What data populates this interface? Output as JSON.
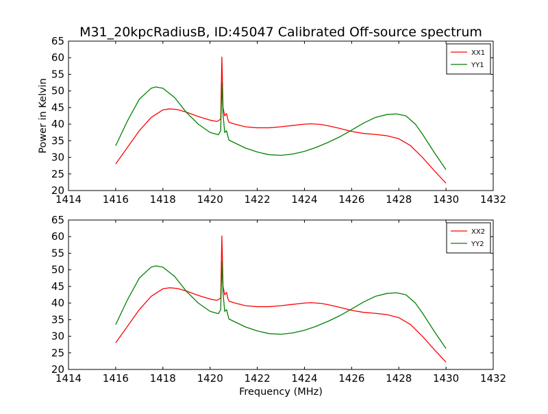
{
  "title": "M31_20kpcRadiusB, ID:45047 Calibrated Off-source spectrum",
  "colors": {
    "XX": "#ff0000",
    "YY": "#008000"
  },
  "chart_data": [
    {
      "type": "line",
      "ylabel": "Power in Kelvin",
      "xlabel": "",
      "xlim": [
        1414,
        1432
      ],
      "ylim": [
        20,
        65
      ],
      "xticks": [
        "1414",
        "1416",
        "1418",
        "1420",
        "1422",
        "1424",
        "1426",
        "1428",
        "1430",
        "1432"
      ],
      "yticks": [
        "20",
        "25",
        "30",
        "35",
        "40",
        "45",
        "50",
        "55",
        "60",
        "65"
      ],
      "legend_position": "top-right",
      "series": [
        {
          "name": "XX1",
          "color": "#ff0000",
          "x": [
            1416.0,
            1416.5,
            1417.0,
            1417.5,
            1418.0,
            1418.3,
            1418.6,
            1419.0,
            1419.5,
            1420.0,
            1420.3,
            1420.45,
            1420.5,
            1420.55,
            1420.62,
            1420.7,
            1420.75,
            1420.8,
            1421.0,
            1421.5,
            1422.0,
            1422.5,
            1423.0,
            1423.5,
            1424.0,
            1424.3,
            1424.7,
            1425.0,
            1425.5,
            1426.0,
            1426.5,
            1427.0,
            1427.5,
            1428.0,
            1428.5,
            1429.0,
            1429.5,
            1430.0
          ],
          "y": [
            28.0,
            33.0,
            38.0,
            42.0,
            44.3,
            44.6,
            44.4,
            43.6,
            42.3,
            41.2,
            40.8,
            41.5,
            60.2,
            45.0,
            42.5,
            43.2,
            41.5,
            40.6,
            40.1,
            39.2,
            38.9,
            38.9,
            39.2,
            39.6,
            40.0,
            40.1,
            39.9,
            39.5,
            38.7,
            37.8,
            37.2,
            36.9,
            36.5,
            35.6,
            33.5,
            30.0,
            26.0,
            22.2
          ]
        },
        {
          "name": "YY1",
          "color": "#008000",
          "x": [
            1416.0,
            1416.5,
            1417.0,
            1417.5,
            1417.7,
            1418.0,
            1418.5,
            1419.0,
            1419.5,
            1420.0,
            1420.35,
            1420.45,
            1420.5,
            1420.55,
            1420.62,
            1420.7,
            1420.75,
            1420.8,
            1421.0,
            1421.5,
            1422.0,
            1422.5,
            1423.0,
            1423.5,
            1424.0,
            1424.5,
            1425.0,
            1425.5,
            1426.0,
            1426.5,
            1427.0,
            1427.5,
            1427.9,
            1428.3,
            1428.7,
            1429.0,
            1429.5,
            1430.0
          ],
          "y": [
            33.5,
            41.0,
            47.5,
            50.8,
            51.2,
            50.8,
            48.0,
            43.5,
            40.0,
            37.5,
            36.8,
            38.0,
            52.5,
            43.0,
            37.5,
            38.0,
            36.5,
            35.2,
            34.5,
            32.8,
            31.6,
            30.8,
            30.6,
            31.0,
            31.8,
            33.0,
            34.5,
            36.2,
            38.2,
            40.3,
            42.0,
            42.9,
            43.1,
            42.5,
            40.0,
            37.0,
            31.5,
            26.3
          ]
        }
      ]
    },
    {
      "type": "line",
      "ylabel": "",
      "xlabel": "Frequency (MHz)",
      "xlim": [
        1414,
        1432
      ],
      "ylim": [
        20,
        65
      ],
      "xticks": [
        "1414",
        "1416",
        "1418",
        "1420",
        "1422",
        "1424",
        "1426",
        "1428",
        "1430",
        "1432"
      ],
      "yticks": [
        "20",
        "25",
        "30",
        "35",
        "40",
        "45",
        "50",
        "55",
        "60",
        "65"
      ],
      "legend_position": "top-right",
      "series": [
        {
          "name": "XX2",
          "color": "#ff0000",
          "x": [
            1416.0,
            1416.5,
            1417.0,
            1417.5,
            1418.0,
            1418.3,
            1418.6,
            1419.0,
            1419.5,
            1420.0,
            1420.3,
            1420.45,
            1420.5,
            1420.55,
            1420.62,
            1420.7,
            1420.75,
            1420.8,
            1421.0,
            1421.5,
            1422.0,
            1422.5,
            1423.0,
            1423.5,
            1424.0,
            1424.3,
            1424.7,
            1425.0,
            1425.5,
            1426.0,
            1426.5,
            1427.0,
            1427.5,
            1428.0,
            1428.5,
            1429.0,
            1429.5,
            1430.0
          ],
          "y": [
            28.0,
            33.0,
            38.0,
            42.0,
            44.3,
            44.6,
            44.4,
            43.6,
            42.3,
            41.2,
            40.8,
            41.5,
            60.2,
            45.0,
            42.5,
            43.2,
            41.5,
            40.6,
            40.1,
            39.2,
            38.9,
            38.9,
            39.2,
            39.6,
            40.0,
            40.1,
            39.9,
            39.5,
            38.7,
            37.8,
            37.2,
            36.9,
            36.5,
            35.6,
            33.5,
            30.0,
            26.0,
            22.2
          ]
        },
        {
          "name": "YY2",
          "color": "#008000",
          "x": [
            1416.0,
            1416.5,
            1417.0,
            1417.5,
            1417.7,
            1418.0,
            1418.5,
            1419.0,
            1419.5,
            1420.0,
            1420.35,
            1420.45,
            1420.5,
            1420.55,
            1420.62,
            1420.7,
            1420.75,
            1420.8,
            1421.0,
            1421.5,
            1422.0,
            1422.5,
            1423.0,
            1423.5,
            1424.0,
            1424.5,
            1425.0,
            1425.5,
            1426.0,
            1426.5,
            1427.0,
            1427.5,
            1427.9,
            1428.3,
            1428.7,
            1429.0,
            1429.5,
            1430.0
          ],
          "y": [
            33.5,
            41.0,
            47.5,
            50.8,
            51.2,
            50.8,
            48.0,
            43.5,
            40.0,
            37.5,
            36.8,
            38.0,
            52.5,
            43.0,
            37.5,
            38.0,
            36.5,
            35.2,
            34.5,
            32.8,
            31.6,
            30.8,
            30.6,
            31.0,
            31.8,
            33.0,
            34.5,
            36.2,
            38.2,
            40.3,
            42.0,
            42.9,
            43.1,
            42.5,
            40.0,
            37.0,
            31.5,
            26.3
          ]
        }
      ]
    }
  ]
}
